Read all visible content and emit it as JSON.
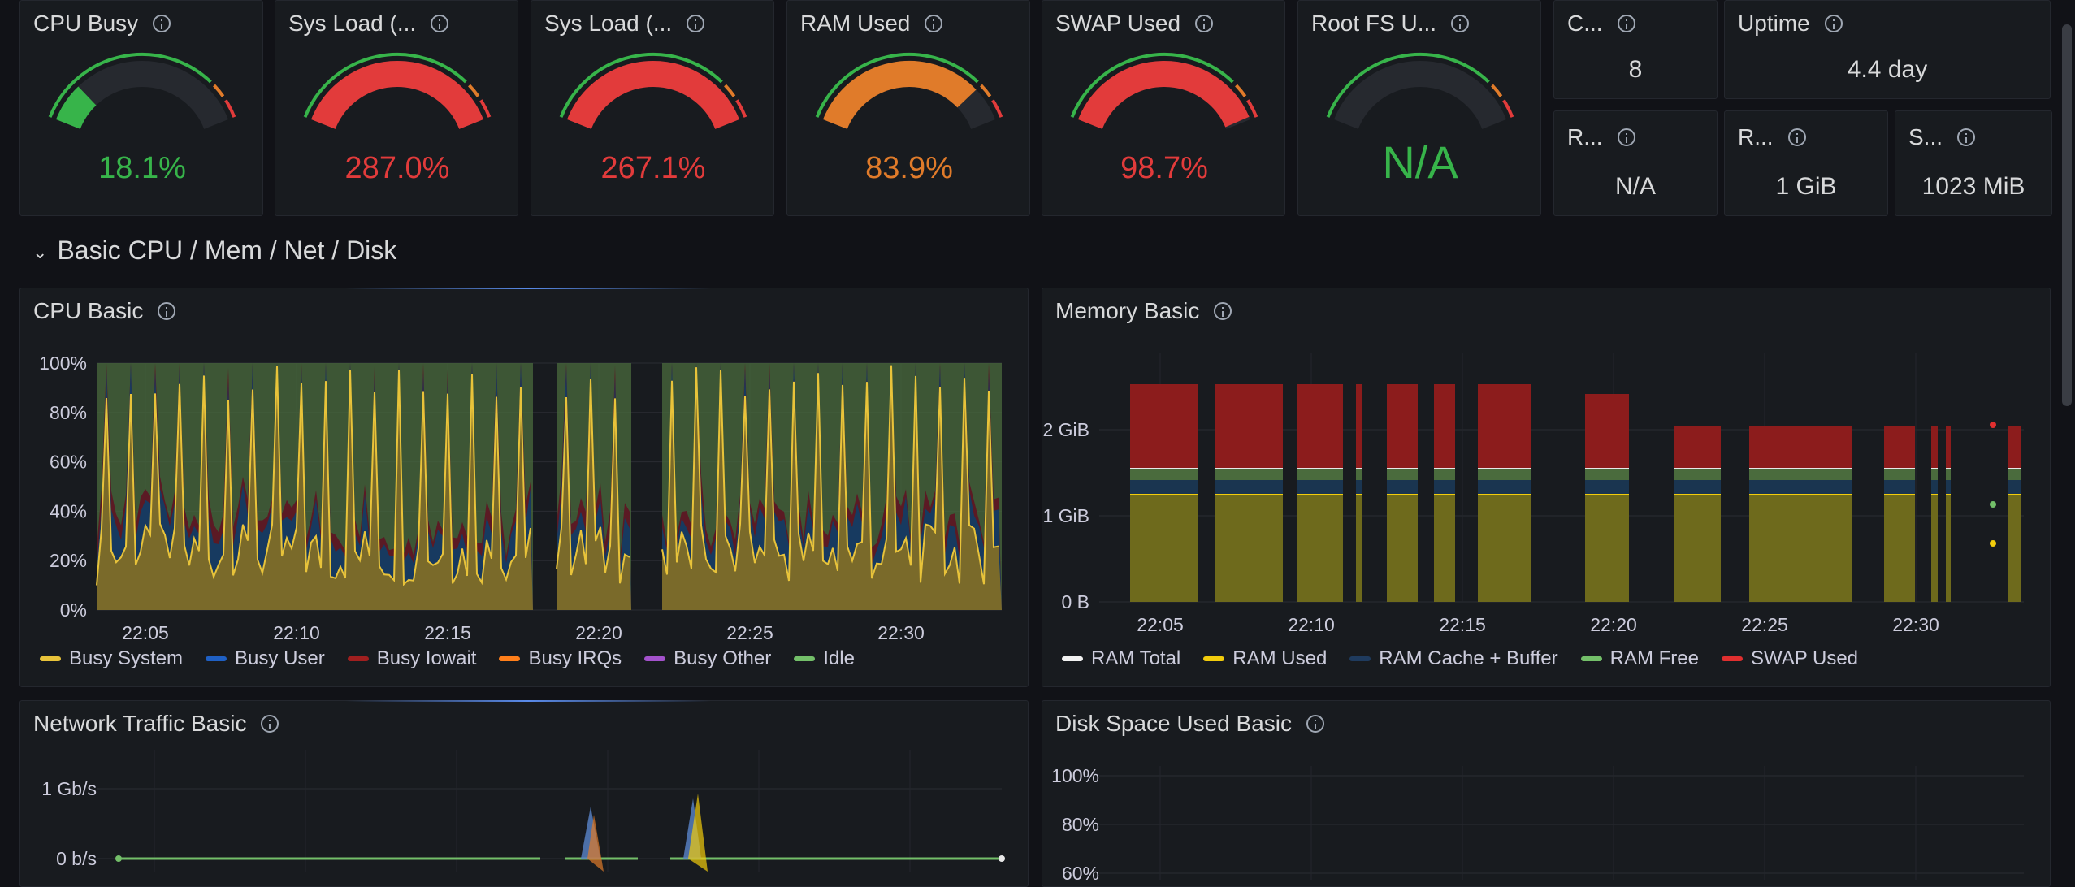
{
  "gauges": [
    {
      "title": "CPU Busy",
      "value": "18.1%",
      "percent": 18.1,
      "color": "#37b44a"
    },
    {
      "title": "Sys Load (...",
      "value": "287.0%",
      "percent": 100,
      "color": "#e23b3b"
    },
    {
      "title": "Sys Load (...",
      "value": "267.1%",
      "percent": 100,
      "color": "#e23b3b"
    },
    {
      "title": "RAM Used",
      "value": "83.9%",
      "percent": 83.9,
      "color": "#e07b2a"
    },
    {
      "title": "SWAP Used",
      "value": "98.7%",
      "percent": 98.7,
      "color": "#e23b3b"
    },
    {
      "title": "Root FS U...",
      "value": "N/A",
      "percent": 0,
      "color": "#37b44a"
    }
  ],
  "stats": [
    {
      "title": "C...",
      "value": "8"
    },
    {
      "title": "Uptime",
      "value": "4.4 day"
    },
    {
      "title": "R...",
      "value": "N/A"
    },
    {
      "title": "R...",
      "value": "1 GiB"
    },
    {
      "title": "S...",
      "value": "1023 MiB"
    }
  ],
  "section": {
    "title": "Basic CPU / Mem / Net / Disk"
  },
  "colors": {
    "green": "#37b44a",
    "orange": "#e07b2a",
    "red": "#e23b3b",
    "yellow": "#e8c33a",
    "blue": "#1f60c4",
    "darkred": "#8a1a1a",
    "purple": "#a352cc",
    "idle": "#73bf69"
  },
  "cpu_panel": {
    "title": "CPU Basic",
    "chart_data": {
      "type": "area",
      "stacked": true,
      "yticks": [
        "100%",
        "80%",
        "60%",
        "40%",
        "20%",
        "0%"
      ],
      "xticks": [
        "22:05",
        "22:10",
        "22:15",
        "22:20",
        "22:25",
        "22:30"
      ],
      "series": [
        {
          "name": "Busy System",
          "color": "#e8c33a"
        },
        {
          "name": "Busy User",
          "color": "#1f60c4"
        },
        {
          "name": "Busy Iowait",
          "color": "#a01f1f"
        },
        {
          "name": "Busy IRQs",
          "color": "#ff7f1a"
        },
        {
          "name": "Busy Other",
          "color": "#a352cc"
        },
        {
          "name": "Idle",
          "color": "#73bf69"
        }
      ]
    }
  },
  "mem_panel": {
    "title": "Memory Basic",
    "chart_data": {
      "type": "area",
      "stacked": true,
      "yticks": [
        "2 GiB",
        "1 GiB",
        "0 B"
      ],
      "xticks": [
        "22:05",
        "22:10",
        "22:15",
        "22:20",
        "22:25",
        "22:30"
      ],
      "series": [
        {
          "name": "RAM Total",
          "color": "#f2f2f2"
        },
        {
          "name": "RAM Used",
          "color": "#f2cc0c"
        },
        {
          "name": "RAM Cache + Buffer",
          "color": "#1f3b5e"
        },
        {
          "name": "RAM Free",
          "color": "#73bf69"
        },
        {
          "name": "SWAP Used",
          "color": "#e02f2f"
        }
      ]
    }
  },
  "net_panel": {
    "title": "Network Traffic Basic",
    "chart_data": {
      "type": "line",
      "yticks": [
        "1 Gb/s",
        "0 b/s"
      ]
    }
  },
  "disk_panel": {
    "title": "Disk Space Used Basic",
    "chart_data": {
      "type": "line",
      "yticks": [
        "100%",
        "80%",
        "60%"
      ]
    }
  }
}
